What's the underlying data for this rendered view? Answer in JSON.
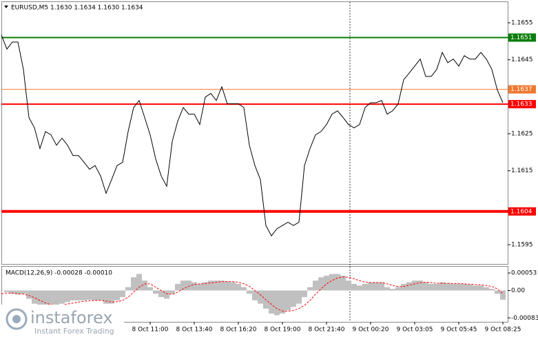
{
  "chart_data": [
    {
      "type": "line",
      "title": "EURUSD,M5  1.1630 1.1634 1.1630 1.1634",
      "color": "#000000",
      "values": [
        1.16517,
        1.16479,
        1.16498,
        1.16498,
        1.16424,
        1.16294,
        1.16266,
        1.1621,
        1.16256,
        1.16247,
        1.16219,
        1.16238,
        1.16219,
        1.16191,
        1.16191,
        1.16173,
        1.16154,
        1.16164,
        1.16136,
        1.16089,
        1.16126,
        1.16164,
        1.16173,
        1.16256,
        1.16321,
        1.1634,
        1.16294,
        1.16247,
        1.16182,
        1.16136,
        1.16108,
        1.16229,
        1.16284,
        1.16321,
        1.16303,
        1.16303,
        1.16275,
        1.16349,
        1.16359,
        1.1634,
        1.16377,
        1.16331,
        1.16331,
        1.16331,
        1.16321,
        1.16219,
        1.16164,
        1.16126,
        1.16002,
        1.15974,
        1.15993,
        1.16002,
        1.16011,
        1.16002,
        1.16011,
        1.16164,
        1.1621,
        1.16247,
        1.16256,
        1.16275,
        1.16303,
        1.16312,
        1.16294,
        1.16275,
        1.16266,
        1.16275,
        1.16321,
        1.16334,
        1.16334,
        1.1634,
        1.16303,
        1.16312,
        1.16331,
        1.16396,
        1.16414,
        1.16433,
        1.16452,
        1.16405,
        1.16405,
        1.16424,
        1.1647,
        1.16442,
        1.16452,
        1.16433,
        1.16461,
        1.16452,
        1.16452,
        1.1647,
        1.16452,
        1.16424,
        1.16368,
        1.16334
      ],
      "levels": [
        {
          "value": 1.1651,
          "color": "#0a7d0a"
        },
        {
          "value": 1.1637,
          "color": "#f07830"
        },
        {
          "value": 1.1633,
          "color": "#ff0000"
        },
        {
          "value": 1.1604,
          "color": "#ff0000"
        }
      ],
      "ylim": [
        1.15898,
        1.16606
      ],
      "yticks": [
        1.1655,
        1.1645,
        1.1625,
        1.1615,
        1.1595
      ]
    },
    {
      "type": "bar",
      "title": "MACD(12,26,9) -0.00028 -0.00010",
      "color": "#c0c0c0",
      "categories": [
        null,
        null,
        null,
        null,
        null,
        null,
        null,
        null,
        null,
        null,
        null,
        null,
        null,
        null,
        null,
        null,
        null,
        null,
        null,
        null,
        null,
        null,
        null,
        null,
        null,
        null,
        null,
        "8 Oct 11:00",
        null,
        null,
        null,
        null,
        null,
        null,
        null,
        "8 Oct 13:40",
        null,
        null,
        null,
        null,
        null,
        null,
        null,
        "8 Oct 16:20",
        null,
        null,
        null,
        null,
        null,
        null,
        null,
        "8 Oct 19:00",
        null,
        null,
        null,
        null,
        null,
        null,
        null,
        "8 Oct 21:40",
        null,
        null,
        null,
        null,
        null,
        null,
        null,
        "9 Oct 00:20",
        null,
        null,
        null,
        null,
        null,
        null,
        null,
        "9 Oct 03:05",
        null,
        null,
        null,
        null,
        null,
        null,
        null,
        "9 Oct 05:45",
        null,
        null,
        null,
        null,
        null,
        null,
        null,
        "9 Oct 08:25"
      ],
      "values": [
        0,
        -5e-05,
        -0.0001,
        -0.00012,
        -0.0001,
        -0.00025,
        -0.0004,
        -0.0005,
        -0.00055,
        -0.0005,
        -0.00045,
        -0.0004,
        -0.00035,
        -0.0003,
        -0.0003,
        -0.0003,
        -0.00028,
        -0.0003,
        -0.0003,
        -0.0004,
        -0.0004,
        -0.0003,
        -0.0002,
        0.0001,
        0.0004,
        0.0005,
        0.0003,
        0.0001,
        -0.0001,
        -0.0002,
        -0.00025,
        -0.0001,
        0.0002,
        0.0003,
        0.0003,
        0.00025,
        0.0002,
        0.00025,
        0.0003,
        0.0003,
        0.0003,
        0.00028,
        0.00025,
        0.0002,
        0.0001,
        -0.0001,
        -0.0003,
        -0.0004,
        -0.00055,
        -0.0007,
        -0.00075,
        -0.0007,
        -0.0006,
        -0.0005,
        -0.0004,
        -0.0002,
        0.0001,
        0.0003,
        0.0004,
        0.00045,
        0.0005,
        0.0005,
        0.00045,
        0.0003,
        0.0002,
        0.00015,
        0.0002,
        0.00025,
        0.00025,
        0.00025,
        0.0001,
        5e-05,
        0.0001,
        0.0002,
        0.00025,
        0.0003,
        0.0003,
        0.00025,
        0.0002,
        0.0002,
        0.00025,
        0.00022,
        0.0002,
        0.0002,
        0.0002,
        0.00018,
        0.00015,
        0.00015,
        0.0001,
        5e-05,
        -0.0001,
        -0.00028
      ],
      "signal": {
        "color": "#ff0000",
        "values": [
          -0.0001,
          -8e-05,
          -8e-05,
          -0.0001,
          -0.00011,
          -0.00015,
          -0.00022,
          -0.0003,
          -0.00038,
          -0.00043,
          -0.00045,
          -0.00044,
          -0.00041,
          -0.00038,
          -0.00035,
          -0.00033,
          -0.00031,
          -0.0003,
          -0.0003,
          -0.00032,
          -0.00035,
          -0.00034,
          -0.0003,
          -0.0002,
          -5e-05,
          0.0001,
          0.0002,
          0.0002,
          0.0001,
          0,
          -0.0001,
          -0.00012,
          -5e-05,
          5e-05,
          0.00013,
          0.00018,
          0.0002,
          0.00021,
          0.00023,
          0.00025,
          0.00027,
          0.00027,
          0.00027,
          0.00025,
          0.0002,
          0.00013,
          0,
          -0.00013,
          -0.00028,
          -0.00042,
          -0.00055,
          -0.00062,
          -0.00063,
          -0.0006,
          -0.00055,
          -0.00045,
          -0.0003,
          -0.00012,
          5e-05,
          0.0002,
          0.0003,
          0.00038,
          0.00041,
          0.0004,
          0.00035,
          0.0003,
          0.00025,
          0.00024,
          0.00024,
          0.00024,
          0.0002,
          0.00015,
          0.00012,
          0.00012,
          0.00016,
          0.0002,
          0.00024,
          0.00025,
          0.00024,
          0.00022,
          0.00022,
          0.00022,
          0.00021,
          0.00021,
          0.0002,
          0.00019,
          0.00018,
          0.00017,
          0.00015,
          0.00012,
          5e-05,
          -0.0001
        ]
      },
      "ylim": [
        -0.00095,
        0.00072
      ],
      "yticks": [
        0.00053,
        {
          "value": 0,
          "label": "0.00"
        },
        -0.00083
      ]
    }
  ],
  "watermark": {
    "brand": "instaforex",
    "tagline": "Instant Forex Trading"
  }
}
